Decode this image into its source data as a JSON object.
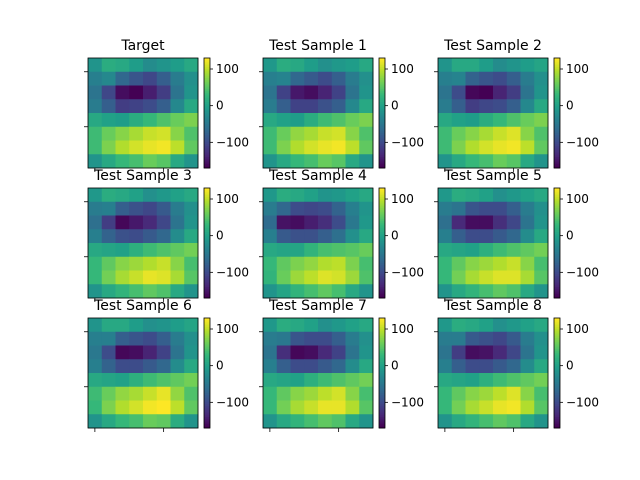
{
  "figure": {
    "colormap": "viridis",
    "colorbar": {
      "vmin": -170,
      "vmax": 130,
      "ticks": [
        100,
        0,
        -100
      ],
      "tick_labels": [
        "100",
        "0",
        "−100"
      ]
    }
  },
  "chart_data": [
    {
      "type": "heatmap",
      "title": "Target",
      "rows": 8,
      "cols": 8,
      "colorbar_ticks": [
        "100",
        "0",
        "−100"
      ],
      "values": [
        [
          -15,
          15,
          10,
          -5,
          -25,
          -15,
          -5,
          10
        ],
        [
          -40,
          -30,
          -70,
          -90,
          -105,
          -80,
          -45,
          -20
        ],
        [
          -55,
          -105,
          -160,
          -170,
          -145,
          -115,
          -55,
          -15
        ],
        [
          -45,
          -80,
          -115,
          -110,
          -100,
          -80,
          -30,
          10
        ],
        [
          10,
          0,
          -5,
          15,
          30,
          45,
          60,
          70
        ],
        [
          35,
          60,
          75,
          90,
          105,
          110,
          75,
          45
        ],
        [
          35,
          70,
          95,
          110,
          120,
          125,
          100,
          55
        ],
        [
          -15,
          10,
          30,
          40,
          60,
          50,
          10,
          -15
        ]
      ]
    },
    {
      "type": "heatmap",
      "title": "Test Sample 1",
      "rows": 8,
      "cols": 8,
      "colorbar_ticks": [
        "100",
        "0",
        "−100"
      ],
      "values": [
        [
          -10,
          15,
          10,
          -5,
          -20,
          -10,
          -5,
          10
        ],
        [
          -40,
          -35,
          -70,
          -85,
          -100,
          -80,
          -45,
          -20
        ],
        [
          -55,
          -110,
          -150,
          -160,
          -140,
          -110,
          -55,
          -15
        ],
        [
          -45,
          -80,
          -110,
          -110,
          -95,
          -80,
          -30,
          10
        ],
        [
          10,
          0,
          -5,
          15,
          35,
          45,
          60,
          70
        ],
        [
          35,
          60,
          80,
          90,
          105,
          110,
          75,
          45
        ],
        [
          35,
          70,
          95,
          110,
          120,
          125,
          100,
          55
        ],
        [
          -15,
          10,
          30,
          40,
          60,
          50,
          10,
          -15
        ]
      ]
    },
    {
      "type": "heatmap",
      "title": "Test Sample 2",
      "rows": 8,
      "cols": 8,
      "colorbar_ticks": [
        "100",
        "0",
        "−100"
      ],
      "values": [
        [
          -15,
          10,
          10,
          -5,
          -25,
          -15,
          -5,
          5
        ],
        [
          -40,
          -35,
          -75,
          -90,
          -100,
          -80,
          -45,
          -20
        ],
        [
          -55,
          -100,
          -165,
          -170,
          -140,
          -115,
          -55,
          -15
        ],
        [
          -45,
          -80,
          -115,
          -105,
          -100,
          -80,
          -30,
          10
        ],
        [
          10,
          0,
          -5,
          15,
          30,
          45,
          60,
          70
        ],
        [
          35,
          60,
          75,
          90,
          105,
          115,
          75,
          45
        ],
        [
          35,
          70,
          95,
          110,
          120,
          125,
          100,
          55
        ],
        [
          -15,
          10,
          30,
          40,
          60,
          50,
          10,
          -15
        ]
      ]
    },
    {
      "type": "heatmap",
      "title": "Test Sample 3",
      "rows": 8,
      "cols": 8,
      "colorbar_ticks": [
        "100",
        "0",
        "−100"
      ],
      "values": [
        [
          -10,
          15,
          10,
          0,
          -20,
          -10,
          0,
          10
        ],
        [
          -45,
          -40,
          -80,
          -95,
          -105,
          -85,
          -45,
          -20
        ],
        [
          -60,
          -115,
          -165,
          -150,
          -135,
          -105,
          -55,
          -15
        ],
        [
          -40,
          -75,
          -95,
          -100,
          -85,
          -70,
          -25,
          10
        ],
        [
          10,
          5,
          0,
          20,
          35,
          45,
          55,
          65
        ],
        [
          30,
          55,
          75,
          85,
          95,
          105,
          75,
          40
        ],
        [
          30,
          65,
          90,
          105,
          120,
          115,
          90,
          50
        ],
        [
          -15,
          10,
          25,
          40,
          55,
          45,
          10,
          -15
        ]
      ]
    },
    {
      "type": "heatmap",
      "title": "Test Sample 4",
      "rows": 8,
      "cols": 8,
      "colorbar_ticks": [
        "100",
        "0",
        "−100"
      ],
      "values": [
        [
          -10,
          15,
          10,
          0,
          -15,
          -10,
          0,
          10
        ],
        [
          -45,
          -70,
          -100,
          -105,
          -100,
          -75,
          -40,
          -15
        ],
        [
          -65,
          -155,
          -160,
          -145,
          -130,
          -100,
          -50,
          -10
        ],
        [
          -40,
          -85,
          -95,
          -95,
          -80,
          -60,
          -20,
          10
        ],
        [
          10,
          5,
          5,
          25,
          40,
          45,
          50,
          60
        ],
        [
          30,
          55,
          70,
          80,
          95,
          100,
          70,
          40
        ],
        [
          25,
          60,
          85,
          100,
          115,
          110,
          85,
          45
        ],
        [
          -15,
          5,
          25,
          40,
          55,
          40,
          10,
          -15
        ]
      ]
    },
    {
      "type": "heatmap",
      "title": "Test Sample 5",
      "rows": 8,
      "cols": 8,
      "colorbar_ticks": [
        "100",
        "0",
        "−100"
      ],
      "values": [
        [
          -10,
          15,
          10,
          0,
          -20,
          -10,
          0,
          10
        ],
        [
          -45,
          -55,
          -90,
          -100,
          -100,
          -80,
          -45,
          -20
        ],
        [
          -60,
          -135,
          -160,
          -160,
          -130,
          -105,
          -55,
          -15
        ],
        [
          -40,
          -80,
          -100,
          -100,
          -85,
          -70,
          -25,
          10
        ],
        [
          10,
          5,
          0,
          20,
          35,
          45,
          55,
          65
        ],
        [
          30,
          55,
          75,
          85,
          95,
          105,
          75,
          40
        ],
        [
          30,
          65,
          90,
          105,
          115,
          115,
          90,
          50
        ],
        [
          -15,
          10,
          25,
          40,
          55,
          45,
          10,
          -15
        ]
      ]
    },
    {
      "type": "heatmap",
      "title": "Test Sample 6",
      "rows": 8,
      "cols": 8,
      "colorbar_ticks": [
        "100",
        "0",
        "−100"
      ],
      "values": [
        [
          -15,
          10,
          10,
          -5,
          -20,
          -15,
          -5,
          5
        ],
        [
          -40,
          -40,
          -80,
          -90,
          -100,
          -80,
          -45,
          -20
        ],
        [
          -50,
          -100,
          -165,
          -160,
          -140,
          -110,
          -55,
          -15
        ],
        [
          -40,
          -75,
          -100,
          -100,
          -85,
          -70,
          -25,
          10
        ],
        [
          10,
          5,
          0,
          20,
          35,
          45,
          55,
          65
        ],
        [
          35,
          60,
          80,
          90,
          105,
          120,
          80,
          45
        ],
        [
          30,
          70,
          95,
          110,
          125,
          130,
          100,
          55
        ],
        [
          -15,
          10,
          30,
          40,
          60,
          55,
          15,
          -15
        ]
      ]
    },
    {
      "type": "heatmap",
      "title": "Test Sample 7",
      "rows": 8,
      "cols": 8,
      "colorbar_ticks": [
        "100",
        "0",
        "−100"
      ],
      "values": [
        [
          -10,
          15,
          10,
          0,
          -20,
          -10,
          0,
          10
        ],
        [
          -45,
          -50,
          -90,
          -100,
          -100,
          -80,
          -45,
          -20
        ],
        [
          -55,
          -130,
          -165,
          -160,
          -135,
          -110,
          -55,
          -15
        ],
        [
          -40,
          -80,
          -100,
          -100,
          -85,
          -70,
          -25,
          10
        ],
        [
          10,
          5,
          0,
          20,
          35,
          45,
          55,
          65
        ],
        [
          30,
          55,
          75,
          85,
          100,
          110,
          75,
          40
        ],
        [
          30,
          65,
          90,
          105,
          120,
          120,
          95,
          50
        ],
        [
          -15,
          10,
          25,
          40,
          55,
          45,
          10,
          -15
        ]
      ]
    },
    {
      "type": "heatmap",
      "title": "Test Sample 8",
      "rows": 8,
      "cols": 8,
      "colorbar_ticks": [
        "100",
        "0",
        "−100"
      ],
      "values": [
        [
          -10,
          15,
          10,
          0,
          -20,
          -10,
          0,
          10
        ],
        [
          -45,
          -45,
          -85,
          -95,
          -105,
          -85,
          -45,
          -20
        ],
        [
          -55,
          -115,
          -160,
          -155,
          -135,
          -105,
          -55,
          -15
        ],
        [
          -40,
          -80,
          -100,
          -100,
          -85,
          -70,
          -25,
          10
        ],
        [
          10,
          5,
          0,
          20,
          35,
          45,
          55,
          65
        ],
        [
          30,
          55,
          75,
          85,
          100,
          115,
          75,
          40
        ],
        [
          30,
          65,
          90,
          105,
          120,
          125,
          95,
          50
        ],
        [
          -15,
          10,
          25,
          40,
          55,
          45,
          10,
          -15
        ]
      ]
    }
  ]
}
